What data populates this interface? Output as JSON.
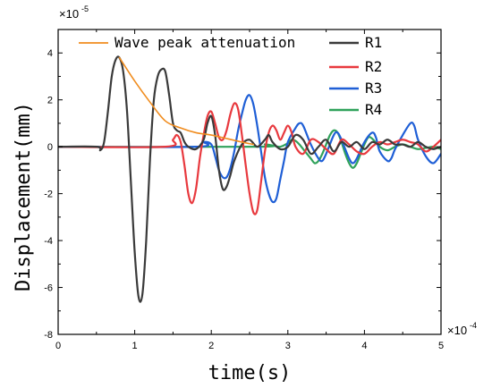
{
  "chart_data": {
    "type": "line",
    "xlabel": "time(s)",
    "ylabel": "Displacement(mm)",
    "x_multiplier_label": "×10",
    "x_multiplier_exp": "-4",
    "y_multiplier_label": "×10",
    "y_multiplier_exp": "-5",
    "xlim": [
      0,
      5
    ],
    "ylim": [
      -8,
      5
    ],
    "xticks": [
      0,
      1,
      2,
      3,
      4,
      5
    ],
    "xtick_labels": [
      "0",
      "1",
      "2",
      "3",
      "4",
      "5"
    ],
    "yticks": [
      -8,
      -6,
      -4,
      -2,
      0,
      2,
      4
    ],
    "ytick_labels": [
      "-8",
      "-6",
      "-4",
      "-2",
      "0",
      "2",
      "4"
    ],
    "grid": false,
    "legend_position": "top",
    "series": [
      {
        "name": "R1",
        "color": "#3a3a3a",
        "points": [
          [
            0,
            0
          ],
          [
            0.5,
            0
          ],
          [
            0.55,
            -0.15
          ],
          [
            0.6,
            0.2
          ],
          [
            0.65,
            1.5
          ],
          [
            0.7,
            3.0
          ],
          [
            0.75,
            3.7
          ],
          [
            0.8,
            3.8
          ],
          [
            0.85,
            3.2
          ],
          [
            0.9,
            1.5
          ],
          [
            0.95,
            -1.5
          ],
          [
            1.0,
            -4.5
          ],
          [
            1.05,
            -6.4
          ],
          [
            1.1,
            -6.3
          ],
          [
            1.15,
            -4.0
          ],
          [
            1.2,
            -0.5
          ],
          [
            1.25,
            2.0
          ],
          [
            1.3,
            3.0
          ],
          [
            1.35,
            3.3
          ],
          [
            1.4,
            3.2
          ],
          [
            1.45,
            2.2
          ],
          [
            1.5,
            1.0
          ],
          [
            1.55,
            0.7
          ],
          [
            1.6,
            0.6
          ],
          [
            1.65,
            0.2
          ],
          [
            1.7,
            0.0
          ],
          [
            1.8,
            -0.1
          ],
          [
            1.9,
            0.3
          ],
          [
            1.95,
            1.0
          ],
          [
            2.0,
            1.3
          ],
          [
            2.05,
            0.5
          ],
          [
            2.1,
            -1.0
          ],
          [
            2.15,
            -1.8
          ],
          [
            2.2,
            -1.7
          ],
          [
            2.25,
            -1.2
          ],
          [
            2.3,
            -0.6
          ],
          [
            2.4,
            0.1
          ],
          [
            2.5,
            0.3
          ],
          [
            2.6,
            0.0
          ],
          [
            2.7,
            0.3
          ],
          [
            2.75,
            0.5
          ],
          [
            2.8,
            0.2
          ],
          [
            2.9,
            -0.1
          ],
          [
            3.0,
            0.0
          ],
          [
            3.1,
            0.5
          ],
          [
            3.2,
            0.3
          ],
          [
            3.3,
            -0.3
          ],
          [
            3.4,
            0.0
          ],
          [
            3.5,
            0.3
          ],
          [
            3.6,
            -0.2
          ],
          [
            3.7,
            0.2
          ],
          [
            3.8,
            0.0
          ],
          [
            3.9,
            0.2
          ],
          [
            4.0,
            -0.1
          ],
          [
            4.1,
            0.2
          ],
          [
            4.2,
            0.1
          ],
          [
            4.3,
            0.3
          ],
          [
            4.4,
            0.1
          ],
          [
            4.5,
            0.1
          ],
          [
            4.6,
            0.0
          ],
          [
            4.7,
            0.2
          ],
          [
            4.8,
            0.0
          ],
          [
            4.9,
            -0.1
          ],
          [
            5.0,
            0.0
          ]
        ]
      },
      {
        "name": "R2",
        "color": "#e8393e",
        "points": [
          [
            0,
            0
          ],
          [
            1.4,
            0
          ],
          [
            1.5,
            0.3
          ],
          [
            1.55,
            0.5
          ],
          [
            1.6,
            0.2
          ],
          [
            1.65,
            -0.8
          ],
          [
            1.7,
            -2.0
          ],
          [
            1.75,
            -2.4
          ],
          [
            1.8,
            -1.8
          ],
          [
            1.85,
            -0.5
          ],
          [
            1.9,
            0.5
          ],
          [
            1.95,
            1.3
          ],
          [
            2.0,
            1.5
          ],
          [
            2.05,
            1.0
          ],
          [
            2.1,
            0.4
          ],
          [
            2.15,
            0.3
          ],
          [
            2.2,
            0.7
          ],
          [
            2.25,
            1.4
          ],
          [
            2.3,
            1.85
          ],
          [
            2.35,
            1.6
          ],
          [
            2.4,
            0.5
          ],
          [
            2.45,
            -0.8
          ],
          [
            2.5,
            -2.0
          ],
          [
            2.55,
            -2.8
          ],
          [
            2.6,
            -2.7
          ],
          [
            2.65,
            -1.5
          ],
          [
            2.7,
            -0.2
          ],
          [
            2.75,
            0.6
          ],
          [
            2.8,
            0.9
          ],
          [
            2.85,
            0.7
          ],
          [
            2.9,
            0.3
          ],
          [
            2.95,
            0.6
          ],
          [
            3.0,
            0.9
          ],
          [
            3.05,
            0.6
          ],
          [
            3.1,
            0.0
          ],
          [
            3.2,
            -0.3
          ],
          [
            3.3,
            0.3
          ],
          [
            3.4,
            0.2
          ],
          [
            3.5,
            -0.1
          ],
          [
            3.6,
            -0.3
          ],
          [
            3.7,
            0.3
          ],
          [
            3.8,
            0.1
          ],
          [
            3.9,
            -0.2
          ],
          [
            4.0,
            -0.3
          ],
          [
            4.1,
            0.0
          ],
          [
            4.2,
            0.2
          ],
          [
            4.3,
            0.1
          ],
          [
            4.4,
            0.2
          ],
          [
            4.5,
            0.3
          ],
          [
            4.6,
            0.2
          ],
          [
            4.7,
            0.1
          ],
          [
            4.8,
            -0.2
          ],
          [
            4.9,
            0.0
          ],
          [
            5.0,
            0.3
          ]
        ]
      },
      {
        "name": "R3",
        "color": "#1f5fd6",
        "points": [
          [
            0,
            0
          ],
          [
            1.8,
            0
          ],
          [
            1.9,
            0.2
          ],
          [
            2.0,
            0.1
          ],
          [
            2.05,
            -0.4
          ],
          [
            2.1,
            -1.0
          ],
          [
            2.15,
            -1.3
          ],
          [
            2.2,
            -1.3
          ],
          [
            2.25,
            -0.9
          ],
          [
            2.3,
            -0.2
          ],
          [
            2.35,
            0.7
          ],
          [
            2.4,
            1.4
          ],
          [
            2.45,
            2.0
          ],
          [
            2.5,
            2.2
          ],
          [
            2.55,
            1.8
          ],
          [
            2.6,
            0.9
          ],
          [
            2.65,
            -0.2
          ],
          [
            2.7,
            -1.3
          ],
          [
            2.75,
            -2.0
          ],
          [
            2.8,
            -2.35
          ],
          [
            2.85,
            -2.2
          ],
          [
            2.9,
            -1.4
          ],
          [
            2.95,
            -0.6
          ],
          [
            3.0,
            0.2
          ],
          [
            3.1,
            0.8
          ],
          [
            3.15,
            1.0
          ],
          [
            3.2,
            0.9
          ],
          [
            3.3,
            0.1
          ],
          [
            3.4,
            -0.5
          ],
          [
            3.45,
            -0.6
          ],
          [
            3.5,
            -0.3
          ],
          [
            3.6,
            0.5
          ],
          [
            3.65,
            0.6
          ],
          [
            3.7,
            0.3
          ],
          [
            3.8,
            -0.5
          ],
          [
            3.85,
            -0.7
          ],
          [
            3.9,
            -0.5
          ],
          [
            4.0,
            0.2
          ],
          [
            4.1,
            0.6
          ],
          [
            4.15,
            0.4
          ],
          [
            4.2,
            -0.2
          ],
          [
            4.3,
            -0.6
          ],
          [
            4.35,
            -0.5
          ],
          [
            4.4,
            -0.1
          ],
          [
            4.5,
            0.5
          ],
          [
            4.6,
            1.0
          ],
          [
            4.65,
            0.9
          ],
          [
            4.7,
            0.3
          ],
          [
            4.8,
            -0.4
          ],
          [
            4.9,
            -0.7
          ],
          [
            5.0,
            -0.3
          ]
        ]
      },
      {
        "name": "R4",
        "color": "#2fa25a",
        "points": [
          [
            0,
            0
          ],
          [
            2.6,
            0
          ],
          [
            2.7,
            0.1
          ],
          [
            2.8,
            0.05
          ],
          [
            2.9,
            0.0
          ],
          [
            3.0,
            0.15
          ],
          [
            3.05,
            0.3
          ],
          [
            3.1,
            0.25
          ],
          [
            3.15,
            0.1
          ],
          [
            3.2,
            -0.1
          ],
          [
            3.25,
            -0.3
          ],
          [
            3.3,
            -0.5
          ],
          [
            3.35,
            -0.7
          ],
          [
            3.4,
            -0.6
          ],
          [
            3.45,
            -0.3
          ],
          [
            3.5,
            0.1
          ],
          [
            3.55,
            0.5
          ],
          [
            3.6,
            0.7
          ],
          [
            3.65,
            0.6
          ],
          [
            3.7,
            0.2
          ],
          [
            3.75,
            -0.3
          ],
          [
            3.8,
            -0.7
          ],
          [
            3.85,
            -0.9
          ],
          [
            3.9,
            -0.7
          ],
          [
            3.95,
            -0.3
          ],
          [
            4.0,
            0.1
          ],
          [
            4.05,
            0.4
          ],
          [
            4.1,
            0.35
          ],
          [
            4.2,
            0.0
          ],
          [
            4.3,
            -0.15
          ],
          [
            4.4,
            0.0
          ],
          [
            4.5,
            0.1
          ],
          [
            4.6,
            0.0
          ],
          [
            4.7,
            -0.1
          ],
          [
            4.8,
            -0.05
          ],
          [
            4.9,
            0.0
          ],
          [
            5.0,
            -0.1
          ]
        ]
      },
      {
        "name": "Wave peak attenuation",
        "color": "#f08c1e",
        "points": [
          [
            0.8,
            3.8
          ],
          [
            1.0,
            2.8
          ],
          [
            1.2,
            1.9
          ],
          [
            1.4,
            1.1
          ],
          [
            1.6,
            0.8
          ],
          [
            1.8,
            0.6
          ],
          [
            2.0,
            0.5
          ],
          [
            2.2,
            0.35
          ],
          [
            2.4,
            0.2
          ],
          [
            2.55,
            0.1
          ]
        ]
      }
    ]
  }
}
